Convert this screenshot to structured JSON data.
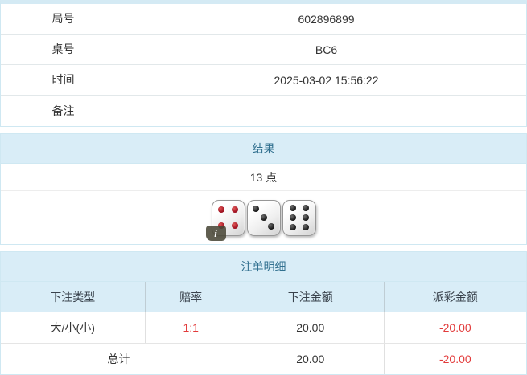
{
  "info_table": {
    "rows": [
      {
        "label": "局号",
        "value": "602896899"
      },
      {
        "label": "桌号",
        "value": "BC6"
      },
      {
        "label": "时间",
        "value": "2025-03-02 15:56:22"
      },
      {
        "label": "备注",
        "value": ""
      }
    ]
  },
  "result_section": {
    "title": "结果",
    "points": "13 点",
    "info_icon_glyph": "i",
    "dice": [
      {
        "value": 4,
        "color": "red"
      },
      {
        "value": 3,
        "color": "black"
      },
      {
        "value": 6,
        "color": "black"
      }
    ]
  },
  "bet_section": {
    "title": "注单明细",
    "columns": [
      "下注类型",
      "赔率",
      "下注金额",
      "派彩金额"
    ],
    "rows": [
      {
        "type": "大/小(小)",
        "odds": "1:1",
        "bet": "20.00",
        "payout": "-20.00"
      }
    ],
    "total": {
      "label": "总计",
      "bet": "20.00",
      "payout": "-20.00"
    }
  },
  "colors": {
    "header_bg": "#d9edf7",
    "header_text": "#31708f",
    "panel_border": "#cfe8f2",
    "negative_text": "#e23b3b",
    "body_text": "#333333",
    "pip_red": "#a01020",
    "pip_black": "#1c1c1c"
  }
}
